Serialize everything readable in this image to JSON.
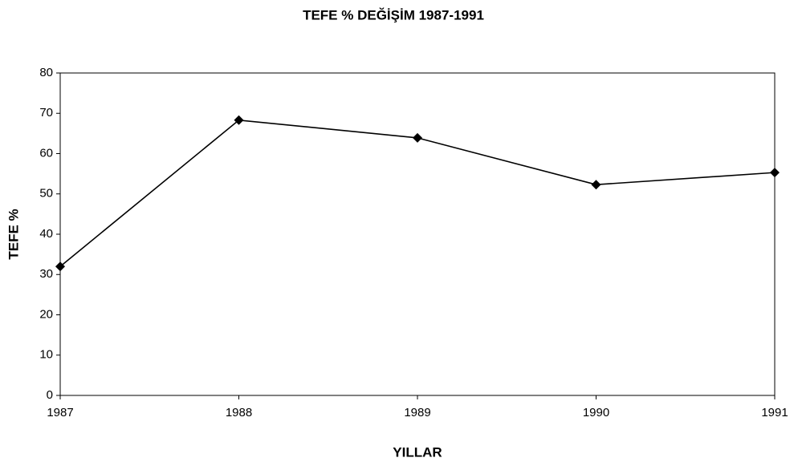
{
  "chart_data": {
    "type": "line",
    "title": "TEFE % DEĞİŞİM 1987-1991",
    "x_label": "YILLAR",
    "y_label": "TEFE %",
    "categories": [
      "1987",
      "1988",
      "1989",
      "1990",
      "1991"
    ],
    "series": [
      {
        "name": "TEFE %",
        "color": "#000000",
        "values": [
          32,
          68.3,
          63.9,
          52.3,
          55.3
        ]
      }
    ],
    "ylim": [
      0,
      80
    ],
    "yticks": [
      0,
      10,
      20,
      30,
      40,
      50,
      60,
      70,
      80
    ],
    "grid": false
  }
}
